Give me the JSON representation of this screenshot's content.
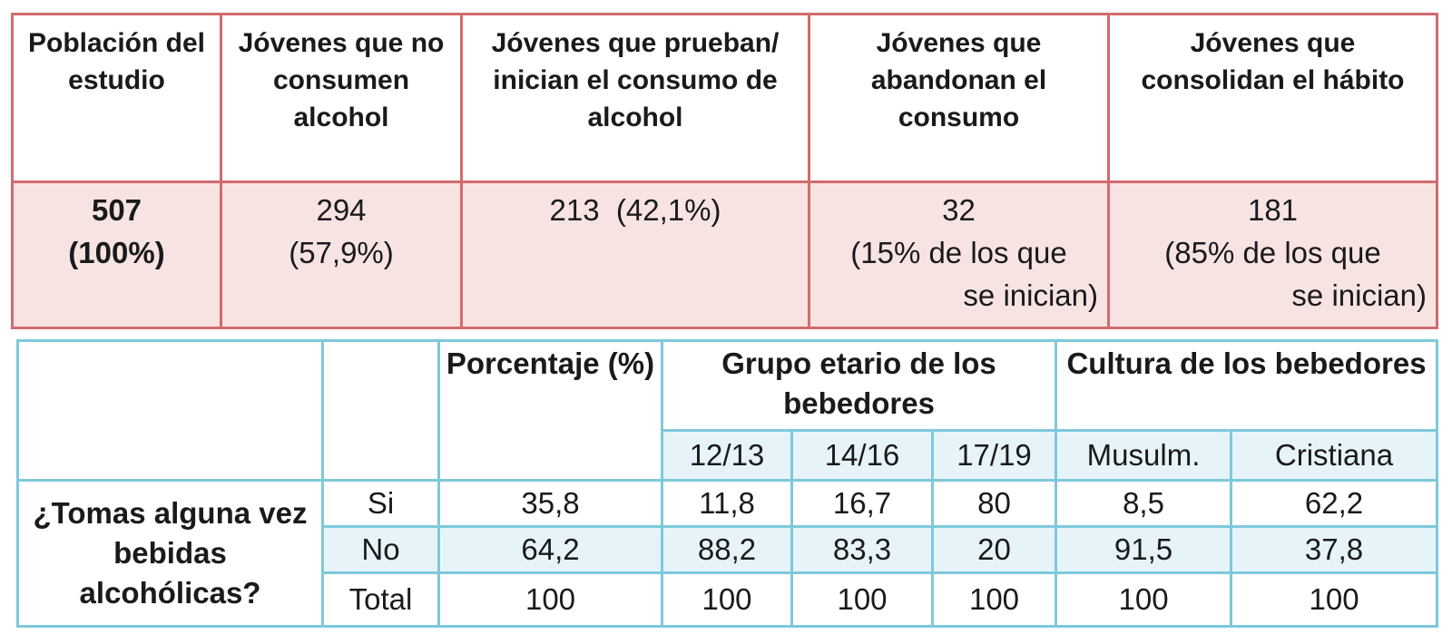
{
  "table1": {
    "headers": [
      "Población del estudio",
      "Jóvenes que no consumen alcohol",
      "Jóvenes que prueban/ inician el consumo de alcohol",
      "Jóvenes que abandonan el consumo",
      "Jóvenes que consolidan el hábito"
    ],
    "values": [
      {
        "num": "507",
        "pct": "(100%)"
      },
      {
        "num": "294",
        "pct": "(57,9%)"
      },
      {
        "num": "213",
        "pct": "(42,1%)"
      },
      {
        "num": "32",
        "pct_a": "(15% de los que",
        "pct_b": "se inician)"
      },
      {
        "num": "181",
        "pct_a": "(85%  de los que",
        "pct_b": "se inician)"
      }
    ]
  },
  "table2": {
    "header": {
      "porcentaje": "Porcentaje (%)",
      "grupo": "Grupo etario de los bebedores",
      "cultura": "Cultura de los bebedores",
      "sub": [
        "12/13",
        "14/16",
        "17/19",
        "Musulm.",
        "Cristiana"
      ]
    },
    "question": "¿Tomas alguna vez bebidas alcohólicas?",
    "rows": [
      {
        "label": "Si",
        "values": [
          "35,8",
          "11,8",
          "16,7",
          "80",
          "8,5",
          "62,2"
        ]
      },
      {
        "label": "No",
        "values": [
          "64,2",
          "88,2",
          "83,3",
          "20",
          "91,5",
          "37,8"
        ]
      },
      {
        "label": "Total",
        "values": [
          "100",
          "100",
          "100",
          "100",
          "100",
          "100"
        ]
      }
    ]
  },
  "colors": {
    "table1_border": "#d26b6d",
    "table1_fill": "#f8e3e3",
    "table2_border": "#7ec8dc",
    "table2_fill": "#e6f4fa"
  }
}
